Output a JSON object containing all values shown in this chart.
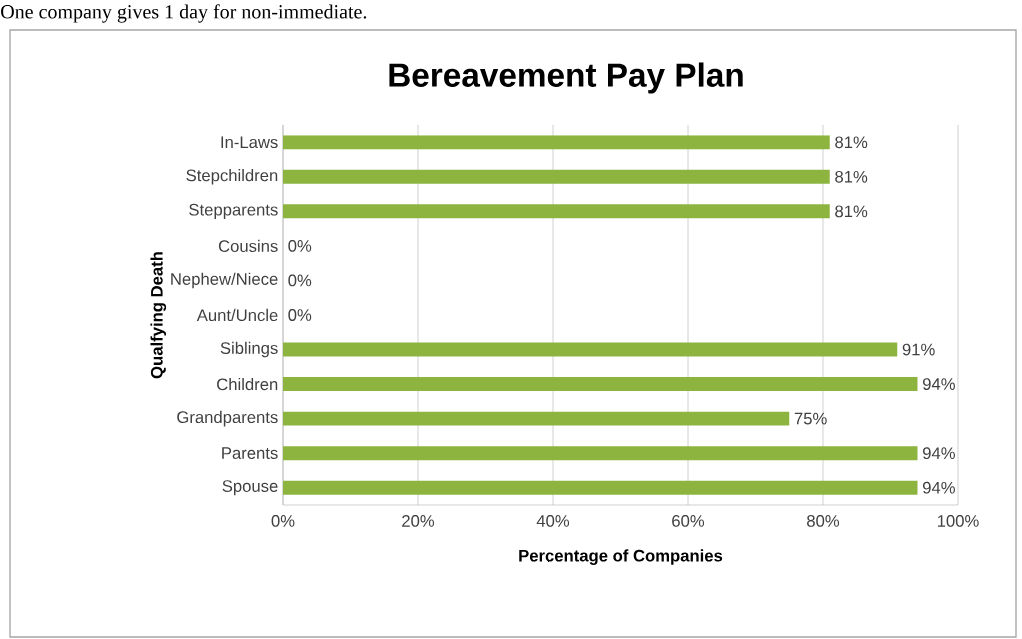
{
  "chart_data": {
    "type": "bar",
    "orientation": "horizontal",
    "title": "Bereavement Pay Plan",
    "xlabel": "Percentage of Companies",
    "ylabel": "Qualfying Death",
    "annotations": [
      "One company gives 1 day for non-immediate."
    ],
    "categories": [
      "In-Laws",
      "Stepchildren",
      "Stepparents",
      "Cousins",
      "Nephew/Niece",
      "Aunt/Uncle",
      "Siblings",
      "Children",
      "Grandparents",
      "Parents",
      "Spouse"
    ],
    "values": [
      81,
      81,
      81,
      0,
      0,
      0,
      91,
      94,
      75,
      94,
      94
    ],
    "value_labels": [
      "81%",
      "81%",
      "81%",
      "0%",
      "0%",
      "0%",
      "91%",
      "94%",
      "75%",
      "94%",
      "94%"
    ],
    "color": "#8db43e",
    "xlim": [
      0,
      100
    ],
    "xticks": [
      {
        "value": 0,
        "label": "0%"
      },
      {
        "value": 20,
        "label": "20%"
      },
      {
        "value": 40,
        "label": "40%"
      },
      {
        "value": 60,
        "label": "60%"
      },
      {
        "value": 80,
        "label": "80%"
      },
      {
        "value": 100,
        "label": "100%"
      }
    ],
    "grid": "x"
  }
}
